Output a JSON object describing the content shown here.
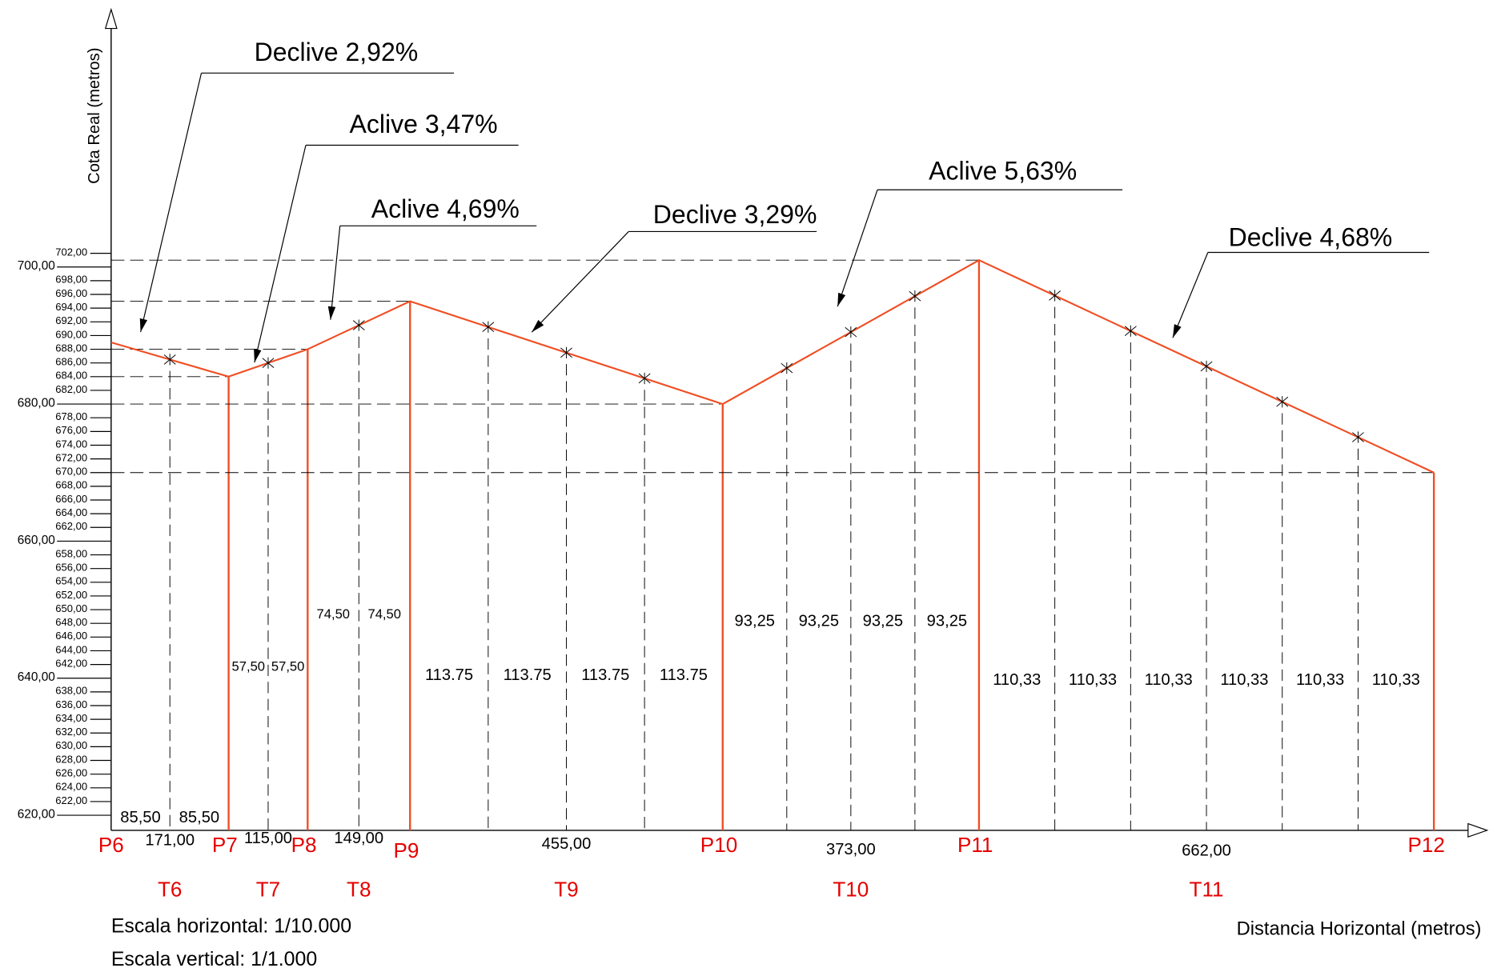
{
  "chart_data": {
    "type": "line",
    "y_label": "Cota Real (metros)",
    "x_label": "Distancia Horizontal (metros)",
    "x": [
      0,
      171,
      286,
      435,
      890,
      1263,
      1925
    ],
    "values": [
      689,
      684,
      688,
      695,
      680,
      701,
      670
    ],
    "point_labels": [
      "P6",
      "P7",
      "P8",
      "P9",
      "P10",
      "P11",
      "P12"
    ],
    "color": "#f04e23",
    "xlim": [
      0,
      1925
    ],
    "ylim": [
      617.8,
      737.3
    ],
    "yticks": [
      {
        "value": 620,
        "label": "620,00"
      },
      {
        "value": 622,
        "label": "622,00"
      },
      {
        "value": 624,
        "label": "624,00"
      },
      {
        "value": 626,
        "label": "626,00"
      },
      {
        "value": 628,
        "label": "628,00"
      },
      {
        "value": 630,
        "label": "630,00"
      },
      {
        "value": 632,
        "label": "632,00"
      },
      {
        "value": 634,
        "label": "634,00"
      },
      {
        "value": 636,
        "label": "636,00"
      },
      {
        "value": 638,
        "label": "638,00"
      },
      {
        "value": 640,
        "label": "640,00"
      },
      {
        "value": 642,
        "label": "642,00"
      },
      {
        "value": 644,
        "label": "644,00"
      },
      {
        "value": 646,
        "label": "646,00"
      },
      {
        "value": 648,
        "label": "648,00"
      },
      {
        "value": 650,
        "label": "650,00"
      },
      {
        "value": 652,
        "label": "652,00"
      },
      {
        "value": 654,
        "label": "654,00"
      },
      {
        "value": 656,
        "label": "656,00"
      },
      {
        "value": 658,
        "label": "658,00"
      },
      {
        "value": 660,
        "label": "660,00"
      },
      {
        "value": 662,
        "label": "662,00"
      },
      {
        "value": 664,
        "label": "664,00"
      },
      {
        "value": 666,
        "label": "666,00"
      },
      {
        "value": 668,
        "label": "668,00"
      },
      {
        "value": 670,
        "label": "670,00"
      },
      {
        "value": 672,
        "label": "672,00"
      },
      {
        "value": 674,
        "label": "674,00"
      },
      {
        "value": 676,
        "label": "676,00"
      },
      {
        "value": 678,
        "label": "678,00"
      },
      {
        "value": 680,
        "label": "680,00"
      },
      {
        "value": 682,
        "label": "682,00"
      },
      {
        "value": 684,
        "label": "684,00"
      },
      {
        "value": 686,
        "label": "686,00"
      },
      {
        "value": 688,
        "label": "688,00"
      },
      {
        "value": 690,
        "label": "690,00"
      },
      {
        "value": 692,
        "label": "692,00"
      },
      {
        "value": 694,
        "label": "694,00"
      },
      {
        "value": 696,
        "label": "696,00"
      },
      {
        "value": 698,
        "label": "698,00"
      },
      {
        "value": 700,
        "label": "700,00"
      },
      {
        "value": 702,
        "label": "702,00"
      }
    ],
    "segments": [
      {
        "name": "T6",
        "length": "171,00",
        "parts": [
          "85,50",
          "85,50"
        ],
        "slope": "Declive 2,92%"
      },
      {
        "name": "T7",
        "length": "115,00",
        "parts": [
          "57,50",
          "57,50"
        ],
        "slope": "Aclive 3,47%"
      },
      {
        "name": "T8",
        "length": "149,00",
        "parts": [
          "74,50",
          "74,50"
        ],
        "slope": "Aclive 4,69%"
      },
      {
        "name": "T9",
        "length": "455,00",
        "parts": [
          "113.75",
          "113.75",
          "113.75",
          "113.75"
        ],
        "slope": "Declive 3,29%"
      },
      {
        "name": "T10",
        "length": "373,00",
        "parts": [
          "93,25",
          "93,25",
          "93,25",
          "93,25"
        ],
        "slope": "Aclive 5,63%"
      },
      {
        "name": "T11",
        "length": "662,00",
        "parts": [
          "110,33",
          "110,33",
          "110,33",
          "110,33",
          "110,33",
          "110,33"
        ],
        "slope": "Declive 4,68%"
      }
    ],
    "notes": [
      "Escala horizontal: 1/10.000",
      "Escala vertical: 1/1.000"
    ]
  }
}
